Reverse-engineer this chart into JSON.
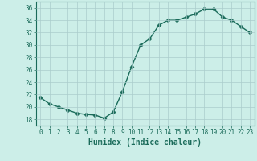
{
  "x": [
    0,
    1,
    2,
    3,
    4,
    5,
    6,
    7,
    8,
    9,
    10,
    11,
    12,
    13,
    14,
    15,
    16,
    17,
    18,
    19,
    20,
    21,
    22,
    23
  ],
  "y": [
    21.5,
    20.5,
    20.0,
    19.5,
    19.0,
    18.8,
    18.7,
    18.2,
    19.2,
    22.5,
    26.5,
    30.0,
    31.0,
    33.2,
    34.0,
    34.0,
    34.5,
    35.0,
    35.8,
    35.8,
    34.5,
    34.0,
    33.0,
    32.0
  ],
  "line_color": "#1a6b5a",
  "marker": "D",
  "markersize": 2.5,
  "linewidth": 1.0,
  "bg_color": "#cceee8",
  "grid_color": "#aacccc",
  "xlabel": "Humidex (Indice chaleur)",
  "xlabel_fontsize": 7,
  "xlabel_fontweight": "bold",
  "xlim": [
    -0.5,
    23.5
  ],
  "ylim": [
    17,
    37
  ],
  "yticks": [
    18,
    20,
    22,
    24,
    26,
    28,
    30,
    32,
    34,
    36
  ],
  "xticks": [
    0,
    1,
    2,
    3,
    4,
    5,
    6,
    7,
    8,
    9,
    10,
    11,
    12,
    13,
    14,
    15,
    16,
    17,
    18,
    19,
    20,
    21,
    22,
    23
  ],
  "tick_fontsize": 5.5,
  "tick_color": "#1a6b5a",
  "spine_color": "#1a6b5a"
}
